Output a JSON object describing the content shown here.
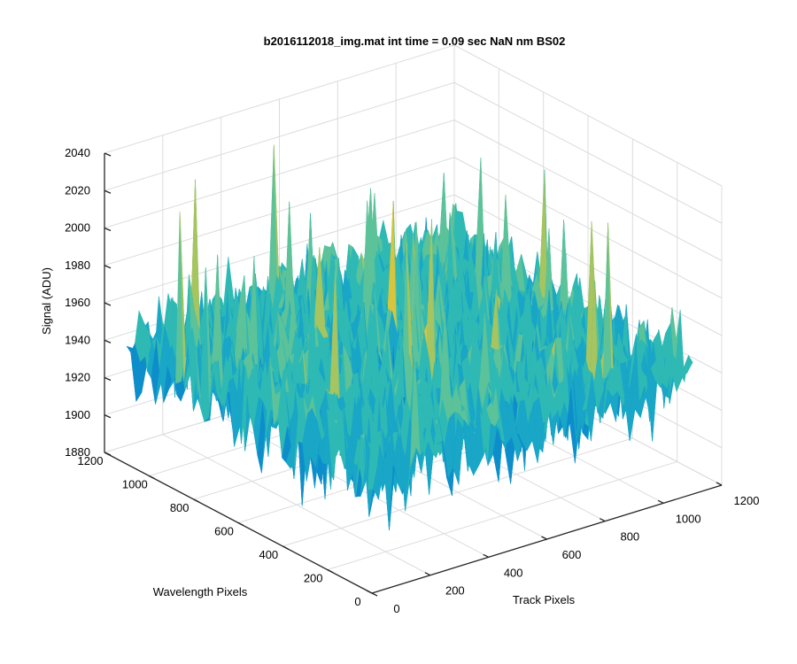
{
  "chart_data": {
    "type": "surface",
    "title": "b2016112018_img.mat int time = 0.09 sec  NaN nm BS02",
    "zlabel": "Signal (ADU)",
    "xlabel": "Track Pixels",
    "ylabel": "Wavelength Pixels",
    "x_ticks": [
      "0",
      "200",
      "400",
      "600",
      "800",
      "1000",
      "1200"
    ],
    "y_ticks": [
      "0",
      "200",
      "400",
      "600",
      "800",
      "1000",
      "1200"
    ],
    "z_ticks": [
      "1880",
      "1900",
      "1920",
      "1940",
      "1960",
      "1980",
      "2000",
      "2020",
      "2040"
    ],
    "xlim": [
      0,
      1200
    ],
    "ylim": [
      0,
      1200
    ],
    "zlim": [
      1880,
      2040
    ],
    "surface_extent": {
      "x": [
        0,
        1100
      ],
      "y": [
        0,
        1100
      ]
    },
    "signal_mean": 1945,
    "signal_range_typical": [
      1915,
      1985
    ],
    "signal_min_approx": 1900,
    "signal_max_approx": 2030,
    "grid": true,
    "colormap": "parula",
    "colors": [
      "#0072bd",
      "#0d8ecb",
      "#19a6c7",
      "#2fb9b4",
      "#5cc29a",
      "#a6c45f",
      "#d9c53b"
    ]
  }
}
